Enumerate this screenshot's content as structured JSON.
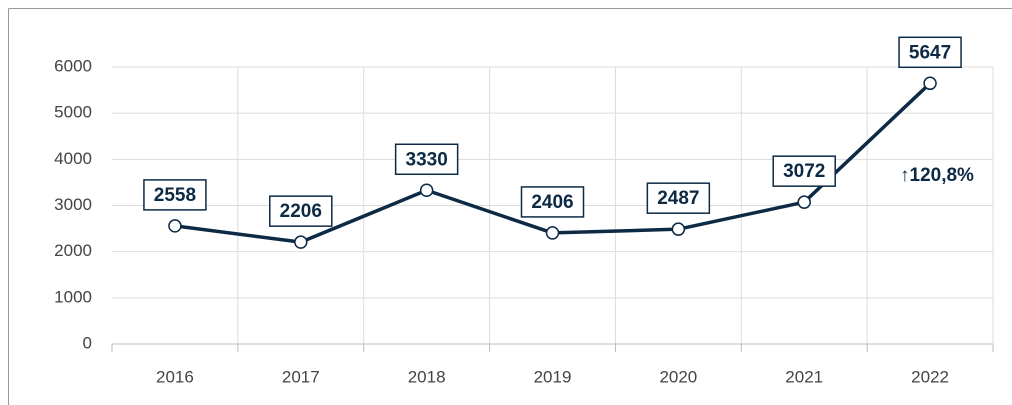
{
  "chart_data": {
    "type": "line",
    "categories": [
      "2016",
      "2017",
      "2018",
      "2019",
      "2020",
      "2021",
      "2022"
    ],
    "series": [
      {
        "name": null,
        "color": "#0d2a45",
        "values": [
          2558,
          2206,
          3330,
          2406,
          2487,
          3072,
          5647
        ]
      }
    ],
    "ylim": [
      0,
      6000
    ],
    "yticks": [
      0,
      1000,
      2000,
      3000,
      4000,
      5000,
      6000
    ],
    "grid": true,
    "annotation": "↑120,8%"
  }
}
